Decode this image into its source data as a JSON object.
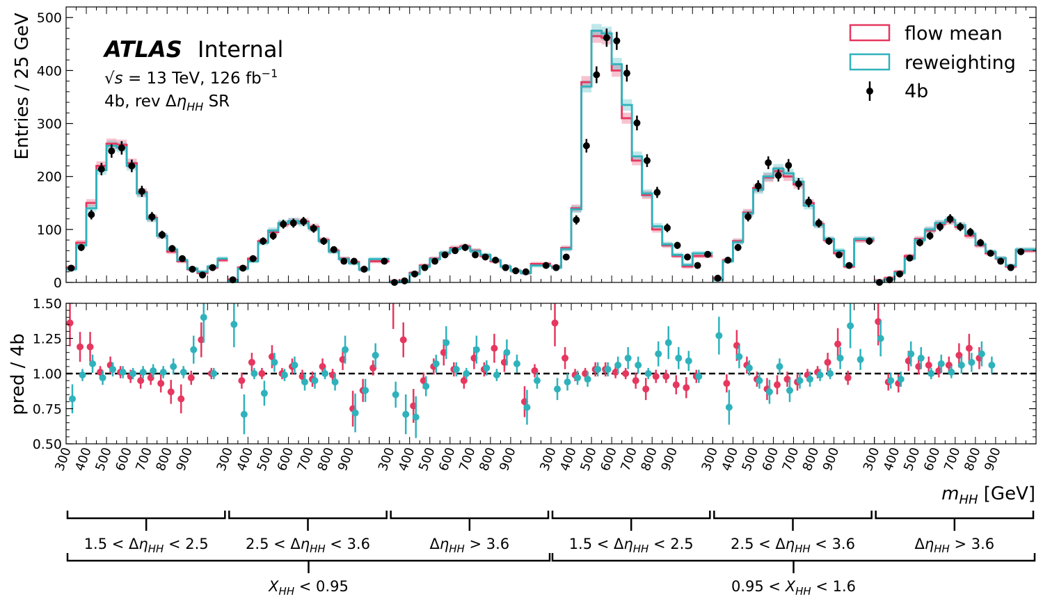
{
  "figure": {
    "experiment": "ATLAS",
    "status": "Internal",
    "energy_prefix": "√",
    "energy_var": "s",
    "energy_text": " = 13 TeV, 126 fb",
    "energy_sup": "−1",
    "region_prefix": "4b, rev Δ",
    "region_eta": "η",
    "region_sub": "HH",
    "region_suffix": " SR"
  },
  "colors": {
    "flow": "#e6375f",
    "reweight": "#2fb2bc",
    "data": "#000000"
  },
  "chart_data": {
    "type": "line",
    "x_unit_label": {
      "var": "m",
      "sub": "HH",
      "unit": " [GeV]"
    },
    "xtick_labels": [
      "300",
      "400",
      "500",
      "600",
      "700",
      "800",
      "900"
    ],
    "legend": {
      "placement": "top-right",
      "entries": [
        "flow mean",
        "reweighting",
        "4b"
      ]
    },
    "top": {
      "ylabel": "Entries / 25 GeV",
      "ylim": [
        0,
        520
      ],
      "yticks": [
        "0",
        "100",
        "200",
        "300",
        "400",
        "500"
      ],
      "flow_mean": [
        [
          28,
          75,
          150,
          220,
          262,
          260,
          225,
          170,
          122,
          88,
          58,
          40,
          25,
          18,
          28,
          42
        ],
        [
          5,
          28,
          45,
          78,
          95,
          110,
          115,
          115,
          105,
          80,
          60,
          45,
          38,
          25,
          40,
          40
        ],
        [
          2,
          3,
          18,
          32,
          45,
          55,
          65,
          68,
          60,
          50,
          40,
          30,
          22,
          18,
          35,
          35
        ],
        [
          30,
          65,
          140,
          378,
          465,
          462,
          400,
          310,
          230,
          165,
          100,
          70,
          50,
          30,
          50,
          50
        ],
        [
          8,
          42,
          78,
          132,
          178,
          198,
          210,
          200,
          185,
          150,
          110,
          80,
          55,
          30,
          80,
          80
        ],
        [
          3,
          8,
          20,
          50,
          82,
          98,
          110,
          115,
          105,
          88,
          70,
          55,
          45,
          30,
          60,
          60
        ]
      ],
      "reweighting": [
        [
          25,
          70,
          140,
          212,
          258,
          255,
          220,
          168,
          120,
          88,
          62,
          42,
          26,
          20,
          30,
          45
        ],
        [
          3,
          26,
          40,
          75,
          98,
          112,
          116,
          112,
          102,
          78,
          58,
          44,
          36,
          24,
          44,
          44
        ],
        [
          1,
          2,
          16,
          30,
          44,
          56,
          63,
          66,
          59,
          52,
          42,
          30,
          22,
          18,
          32,
          32
        ],
        [
          28,
          63,
          138,
          370,
          475,
          470,
          412,
          335,
          238,
          168,
          106,
          72,
          52,
          33,
          55,
          55
        ],
        [
          5,
          40,
          76,
          130,
          175,
          200,
          215,
          206,
          190,
          145,
          108,
          82,
          60,
          32,
          82,
          82
        ],
        [
          2,
          6,
          18,
          45,
          80,
          100,
          112,
          118,
          108,
          92,
          72,
          58,
          46,
          32,
          62,
          62
        ]
      ],
      "data_4b": [
        [
          27,
          66,
          128,
          214,
          248,
          254,
          220,
          172,
          124,
          90,
          64,
          45,
          25,
          14,
          28,
          null
        ],
        [
          5,
          27,
          45,
          78,
          88,
          110,
          112,
          115,
          102,
          78,
          62,
          40,
          40,
          25,
          null,
          40
        ],
        [
          0,
          3,
          16,
          28,
          40,
          52,
          60,
          66,
          52,
          48,
          42,
          28,
          22,
          20,
          null,
          32
        ],
        [
          28,
          48,
          118,
          258,
          392,
          462,
          456,
          395,
          301,
          230,
          170,
          103,
          70,
          48,
          32,
          53
        ],
        [
          8,
          42,
          66,
          124,
          182,
          226,
          202,
          221,
          186,
          152,
          112,
          78,
          52,
          32,
          null,
          78
        ],
        [
          0,
          5,
          16,
          46,
          75,
          88,
          105,
          120,
          105,
          95,
          75,
          55,
          40,
          28,
          58,
          null
        ]
      ]
    },
    "bottom": {
      "ylabel": "pred / 4b",
      "ylim": [
        0.5,
        1.5
      ],
      "yticks": [
        "0.50",
        "0.75",
        "1.00",
        "1.25",
        "1.50"
      ],
      "reference_line": 1.0,
      "flow_mean_ratio": [
        [
          1.36,
          1.19,
          1.19,
          1.01,
          1.06,
          1.01,
          0.98,
          0.95,
          0.97,
          0.93,
          0.87,
          0.82,
          0.97,
          1.24,
          1.0,
          null
        ],
        [
          null,
          0.95,
          1.08,
          1.0,
          1.12,
          1.0,
          1.05,
          0.98,
          0.96,
          1.05,
          0.99,
          1.1,
          0.75,
          0.88,
          1.04,
          null
        ],
        [
          1.55,
          1.24,
          0.77,
          0.95,
          1.05,
          1.15,
          1.03,
          0.95,
          1.11,
          1.03,
          1.18,
          1.08,
          null,
          0.8,
          1.02,
          null
        ],
        [
          1.36,
          1.11,
          0.99,
          1.0,
          1.03,
          1.03,
          1.01,
          1.0,
          0.95,
          0.89,
          0.98,
          0.98,
          0.92,
          0.9,
          0.98,
          null
        ],
        [
          null,
          0.93,
          1.2,
          1.06,
          0.96,
          0.89,
          0.92,
          0.96,
          0.94,
          0.99,
          1.01,
          1.08,
          1.21,
          0.97,
          null,
          null
        ],
        [
          1.37,
          0.94,
          0.93,
          1.09,
          1.05,
          1.06,
          1.02,
          1.06,
          1.13,
          1.18,
          1.11,
          null,
          null,
          null,
          null,
          null
        ]
      ],
      "reweighting_ratio": [
        [
          0.82,
          0.99,
          1.07,
          0.97,
          1.03,
          1.01,
          1.0,
          1.01,
          1.02,
          1.01,
          1.05,
          1.01,
          1.17,
          1.4,
          1.0,
          null
        ],
        [
          1.35,
          0.71,
          1.0,
          0.86,
          1.08,
          0.99,
          1.06,
          0.94,
          0.95,
          1.0,
          0.94,
          1.17,
          0.72,
          0.88,
          1.13,
          null
        ],
        [
          0.85,
          0.71,
          0.69,
          0.91,
          1.07,
          1.22,
          1.03,
          1.0,
          1.17,
          1.04,
          0.99,
          1.15,
          1.07,
          0.76,
          0.95,
          null
        ],
        [
          0.89,
          0.94,
          0.97,
          0.96,
          1.03,
          1.03,
          1.06,
          1.11,
          1.06,
          1.0,
          1.14,
          1.22,
          1.11,
          1.09,
          0.98,
          null
        ],
        [
          1.27,
          0.76,
          1.12,
          1.04,
          0.95,
          0.87,
          1.05,
          0.88,
          0.95,
          0.96,
          0.99,
          1.0,
          1.11,
          1.34,
          1.1,
          null
        ],
        [
          1.25,
          0.95,
          0.96,
          1.14,
          1.11,
          1.0,
          1.07,
          1.01,
          1.06,
          1.08,
          1.14,
          1.06,
          null,
          null,
          null,
          null
        ]
      ]
    },
    "brackets": {
      "eta_groups": [
        {
          "lo": "1.5 < Δ",
          "sym": "η",
          "sub": "HH",
          "hi": " < 2.5"
        },
        {
          "lo": "2.5 < Δ",
          "sym": "η",
          "sub": "HH",
          "hi": " < 3.6"
        },
        {
          "lo": "Δ",
          "sym": "η",
          "sub": "HH",
          "hi": " > 3.6"
        },
        {
          "lo": "1.5 < Δ",
          "sym": "η",
          "sub": "HH",
          "hi": " < 2.5"
        },
        {
          "lo": "2.5 < Δ",
          "sym": "η",
          "sub": "HH",
          "hi": " < 3.6"
        },
        {
          "lo": "Δ",
          "sym": "η",
          "sub": "HH",
          "hi": " > 3.6"
        }
      ],
      "xhh_groups": [
        {
          "lo": "",
          "sym": "X",
          "sub": "HH",
          "hi": " < 0.95"
        },
        {
          "lo": "0.95 < ",
          "sym": "X",
          "sub": "HH",
          "hi": " < 1.6"
        }
      ]
    }
  }
}
